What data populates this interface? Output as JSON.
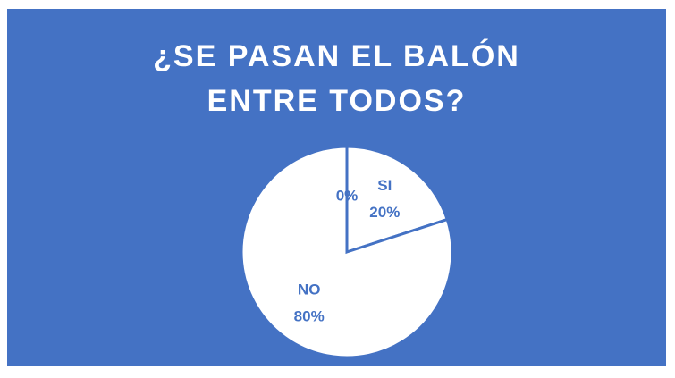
{
  "chart_data": {
    "type": "pie",
    "title": "¿SE PASAN EL BALÓN ENTRE TODOS?",
    "categories": [
      "SI",
      "NO",
      null
    ],
    "values": [
      20,
      80,
      0
    ],
    "value_labels": [
      "20%",
      "80%",
      "0%"
    ],
    "colors": [
      "#ffffff",
      "#ffffff",
      "#ffffff"
    ],
    "edge_color": "#4472c4"
  }
}
